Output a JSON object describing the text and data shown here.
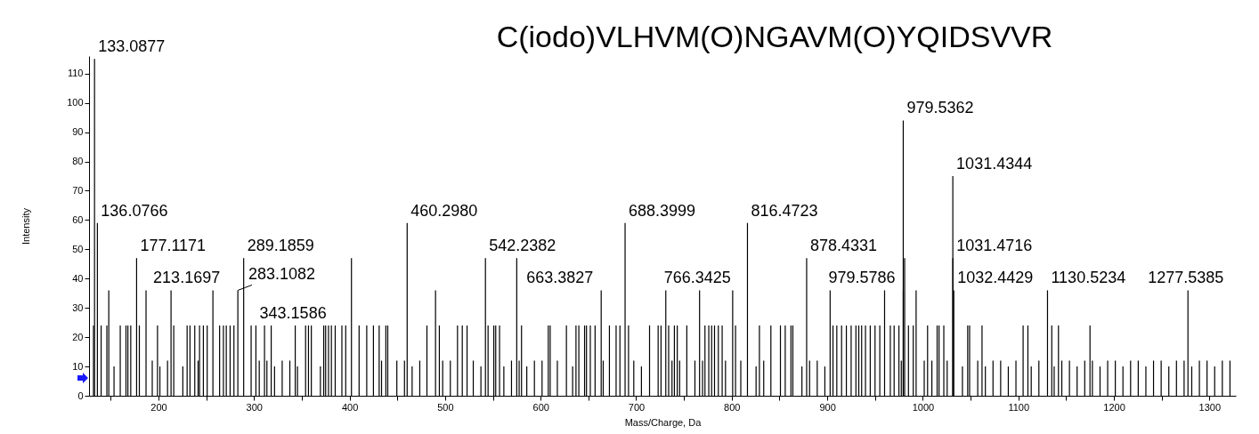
{
  "chart_data": {
    "type": "bar",
    "title": "C(iodo)VLHVM(O)NGAVM(O)YQIDSVVR",
    "xlabel": "Mass/Charge, Da",
    "ylabel": "Intensity",
    "color": "#000000",
    "xlim": [
      132,
      1323
    ],
    "ylim": [
      0,
      116
    ],
    "xticks": [
      {
        "value": 150,
        "label": null
      },
      200,
      {
        "value": 250,
        "label": null
      },
      300,
      {
        "value": 350,
        "label": null
      },
      400,
      {
        "value": 450,
        "label": null
      },
      500,
      {
        "value": 550,
        "label": null
      },
      600,
      {
        "value": 650,
        "label": null
      },
      700,
      {
        "value": 750,
        "label": null
      },
      800,
      {
        "value": 850,
        "label": null
      },
      900,
      {
        "value": 950,
        "label": null
      },
      1000,
      {
        "value": 1050,
        "label": null
      },
      1100,
      {
        "value": 1150,
        "label": null
      },
      1200,
      {
        "value": 1250,
        "label": null
      },
      1300
    ],
    "yticks": [
      0,
      10,
      20,
      30,
      40,
      50,
      60,
      70,
      80,
      90,
      100,
      110
    ],
    "x": [
      132,
      133.0877,
      136.0766,
      140,
      146,
      148,
      153.5,
      160,
      166,
      168,
      171,
      177.1171,
      180,
      187,
      193.5,
      199,
      201.5,
      209.5,
      213.1697,
      216,
      225.5,
      230,
      233,
      238,
      241.5,
      243,
      247,
      251,
      257,
      264,
      268,
      271,
      275,
      279,
      283.1082,
      289.1859,
      297,
      302,
      305.5,
      311,
      313.5,
      318,
      321.5,
      329.5,
      337.5,
      343.1586,
      345.5,
      354,
      357,
      360,
      369.5,
      373,
      375,
      378,
      381,
      385,
      392,
      396,
      402,
      410,
      418,
      425,
      431,
      433.5,
      438,
      440,
      449.5,
      457.5,
      460.298,
      465.5,
      473.5,
      481,
      490,
      494,
      497.5,
      505.5,
      513,
      518,
      523,
      529.5,
      537.5,
      542.2382,
      545,
      551,
      553,
      557,
      561.5,
      569.5,
      575,
      577.5,
      580,
      585.5,
      593.5,
      601.5,
      608,
      610,
      617.5,
      627,
      633.5,
      637,
      640,
      646,
      648,
      652,
      657,
      663.3827,
      665.5,
      672,
      679,
      683,
      688.3999,
      692,
      697.5,
      705.5,
      714,
      723,
      726,
      731,
      734,
      737.5,
      740,
      743,
      745.5,
      753,
      761.5,
      766.3425,
      769.5,
      772,
      776,
      779,
      782,
      786,
      790,
      793.5,
      801,
      804,
      809.5,
      816.4723,
      825.5,
      829,
      833.5,
      841,
      851,
      856,
      862,
      864,
      873.5,
      878.4331,
      881.5,
      889.5,
      897.5,
      903,
      906,
      910,
      915,
      920,
      925,
      930,
      933,
      936,
      940,
      945,
      950,
      955,
      960,
      966,
      970,
      975,
      977.5,
      979.5362,
      979.5786,
      981,
      985,
      990,
      993,
      1001.5,
      1005,
      1009.5,
      1015,
      1017,
      1022,
      1025.5,
      1031.4344,
      1031.4716,
      1032.4429,
      1041.5,
      1047,
      1049,
      1057.5,
      1062,
      1065.5,
      1073.5,
      1081.5,
      1089.5,
      1097.5,
      1105,
      1110,
      1113.5,
      1121.5,
      1130.5234,
      1135,
      1137.5,
      1142,
      1145.5,
      1153.5,
      1161.5,
      1169.5,
      1175,
      1177.5,
      1185.5,
      1193.5,
      1201.5,
      1209.5,
      1217.5,
      1225.5,
      1233.5,
      1241.5,
      1249.5,
      1257.5,
      1265.5,
      1273.5,
      1277.5385,
      1281.5,
      1289.5,
      1297.5,
      1305.5,
      1313.5,
      1321.5
    ],
    "values": [
      24,
      115,
      59,
      24,
      24,
      36,
      10,
      24,
      24,
      24,
      24,
      47,
      24,
      36,
      12,
      24,
      10,
      12,
      36,
      24,
      10,
      24,
      24,
      24,
      12,
      24,
      24,
      24,
      36,
      24,
      24,
      24,
      24,
      24,
      36,
      47,
      24,
      24,
      12,
      24,
      12,
      24,
      10,
      12,
      12,
      24,
      10,
      24,
      24,
      24,
      10,
      24,
      24,
      24,
      24,
      24,
      24,
      24,
      47,
      24,
      24,
      24,
      24,
      12,
      24,
      24,
      12,
      12,
      59,
      10,
      12,
      24,
      36,
      24,
      12,
      12,
      24,
      24,
      24,
      12,
      10,
      47,
      24,
      24,
      24,
      24,
      10,
      12,
      47,
      12,
      24,
      10,
      12,
      12,
      24,
      24,
      12,
      24,
      10,
      24,
      24,
      24,
      24,
      24,
      24,
      36,
      12,
      24,
      24,
      24,
      59,
      24,
      12,
      10,
      24,
      24,
      24,
      36,
      24,
      12,
      24,
      24,
      12,
      24,
      12,
      36,
      12,
      24,
      24,
      24,
      24,
      24,
      24,
      12,
      36,
      24,
      12,
      59,
      10,
      24,
      12,
      24,
      24,
      24,
      24,
      24,
      10,
      47,
      12,
      12,
      10,
      36,
      24,
      24,
      24,
      24,
      24,
      24,
      24,
      24,
      24,
      24,
      24,
      24,
      36,
      24,
      24,
      24,
      12,
      94,
      36,
      47,
      24,
      24,
      36,
      12,
      24,
      12,
      24,
      24,
      24,
      12,
      75,
      47,
      36,
      10,
      24,
      24,
      12,
      24,
      10,
      12,
      12,
      10,
      12,
      24,
      24,
      10,
      12,
      36,
      24,
      10,
      24,
      12,
      12,
      10,
      12,
      24,
      12,
      10,
      12,
      12,
      10,
      12,
      12,
      10,
      12,
      12,
      10,
      12,
      12,
      36,
      10,
      12,
      12,
      10,
      12,
      12
    ],
    "annotations": [
      {
        "text": "133.0877",
        "x": 133.0877,
        "y": 115
      },
      {
        "text": "136.0766",
        "x": 136.0766,
        "y": 59
      },
      {
        "text": "177.1171",
        "x": 177.1171,
        "y": 47
      },
      {
        "text": "213.1697",
        "x": 213.1697,
        "y": 36
      },
      {
        "text": "283.1082",
        "x": 283.1082,
        "y": 36
      },
      {
        "text": "289.1859",
        "x": 289.1859,
        "y": 47
      },
      {
        "text": "343.1586",
        "x": 343.1586,
        "y": 24
      },
      {
        "text": "460.2980",
        "x": 460.298,
        "y": 59
      },
      {
        "text": "542.2382",
        "x": 542.2382,
        "y": 47
      },
      {
        "text": "663.3827",
        "x": 663.3827,
        "y": 36
      },
      {
        "text": "688.3999",
        "x": 688.3999,
        "y": 59
      },
      {
        "text": "766.3425",
        "x": 766.3425,
        "y": 36
      },
      {
        "text": "816.4723",
        "x": 816.4723,
        "y": 59
      },
      {
        "text": "878.4331",
        "x": 878.4331,
        "y": 47
      },
      {
        "text": "979.5362",
        "x": 979.5362,
        "y": 94
      },
      {
        "text": "979.5786",
        "x": 979.5786,
        "y": 36
      },
      {
        "text": "1031.4344",
        "x": 1031.4344,
        "y": 75
      },
      {
        "text": "1031.4716",
        "x": 1031.4716,
        "y": 47
      },
      {
        "text": "1032.4429",
        "x": 1032.4429,
        "y": 36
      },
      {
        "text": "1130.5234",
        "x": 1130.5234,
        "y": 36
      },
      {
        "text": "1277.5385",
        "x": 1277.5385,
        "y": 36
      }
    ]
  }
}
